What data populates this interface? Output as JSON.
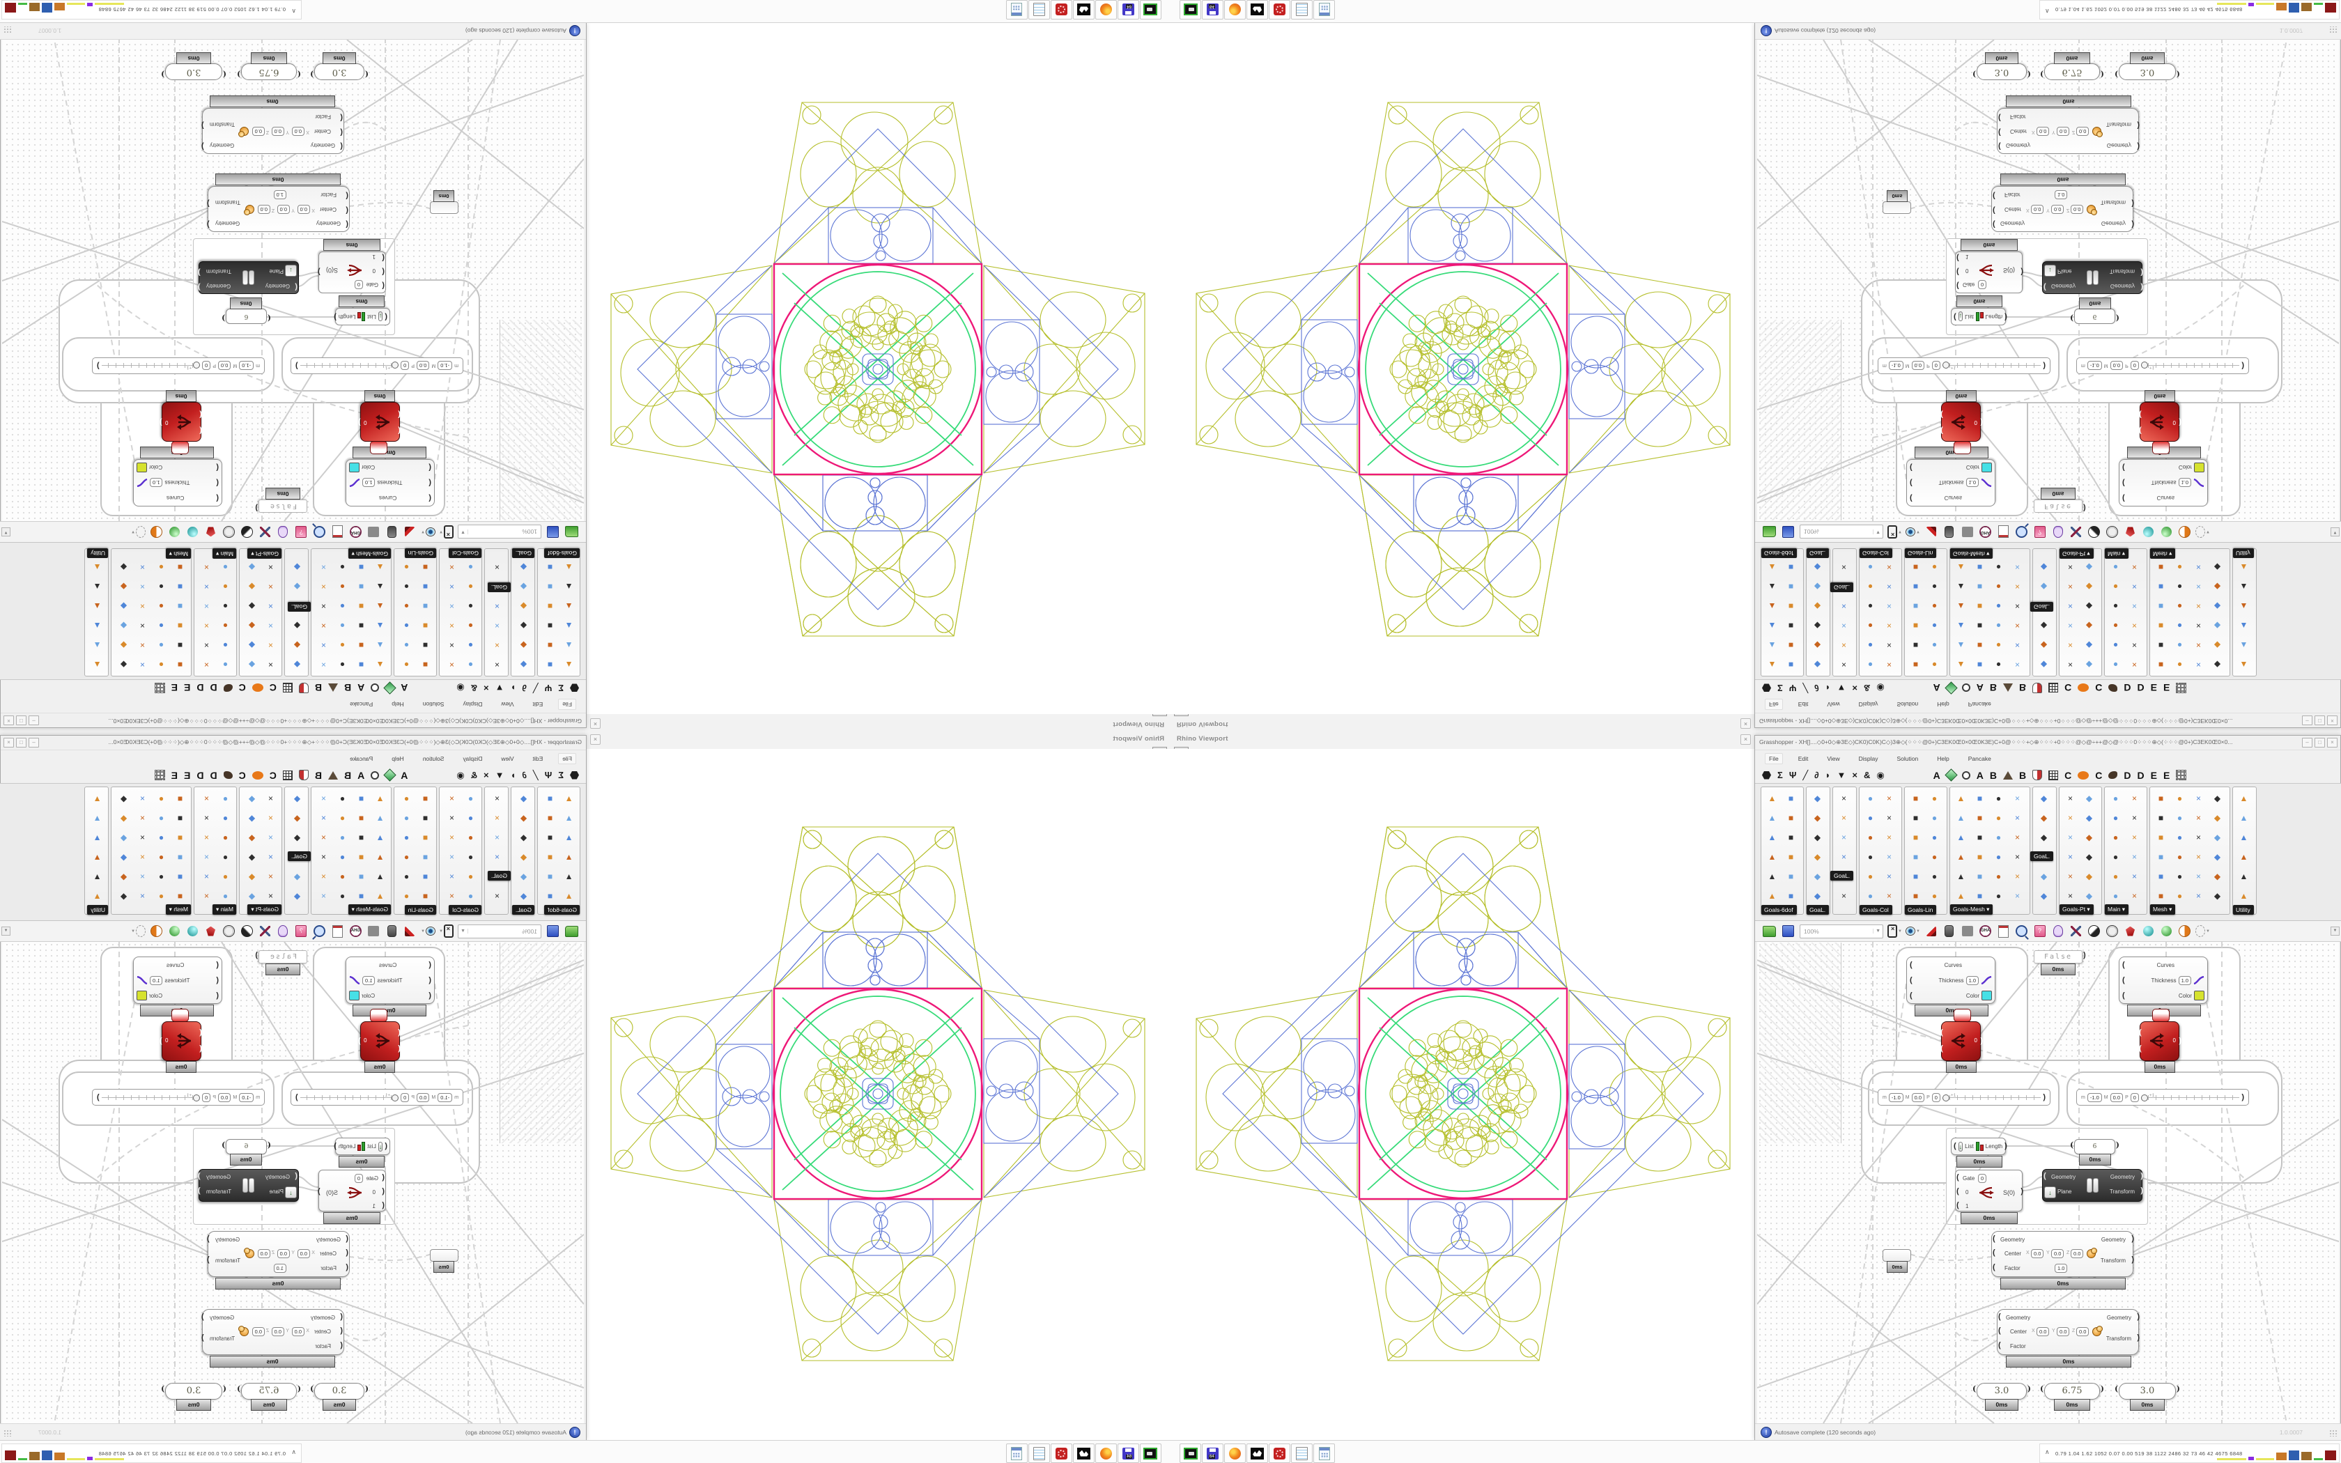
{
  "colors": {
    "pattern_olive": "#b5bf2b",
    "pattern_blue": "#5b74d4",
    "pattern_magenta": "#ee1878",
    "pattern_green": "#37db79",
    "preview_left_swatch": "#46e0e6",
    "preview_right_swatch": "#d6e22e",
    "error_red": "#c21f1f"
  },
  "rhino": {
    "title": "Rhino Viewport",
    "close": "×",
    "viewport_menu": "▼"
  },
  "gh": {
    "title": "Grasshopper - XH[]....◇0+0◇⊕3E◇)CK0)C0K)C◇)3⊕◇(⁘⁘⁘@0+)C3EK0Œ0×0Œ0K3E)C+0@⁘⁘⁘+◇⊕⁘⁘⁘+0⁘⁘⁘@◇@÷++@◇@⁘⁘⁘0⁘⁘⁘⊕◇(⁘⁘⁘@0+)C3EK0Œ0×0...",
    "buttons": {
      "minimize": "–",
      "maximize": "□",
      "close": "×"
    },
    "menu": [
      "File",
      "Edit",
      "View",
      "Display",
      "Solution",
      "Help",
      "Pancake"
    ],
    "tabs": [
      {
        "type": "shape",
        "name": "params-hexagon-icon",
        "cls": "sh-hex"
      },
      {
        "type": "glyph",
        "g": "Σ",
        "name": "maths-tab-icon"
      },
      {
        "type": "glyph",
        "g": "Ψ",
        "name": "sets-tab-icon"
      },
      {
        "type": "glyph",
        "g": "╱",
        "name": "vector-tab-icon"
      },
      {
        "type": "glyph",
        "g": "∂",
        "name": "curve-tab-icon"
      },
      {
        "type": "glyph",
        "g": "◗",
        "name": "surface-tab-icon"
      },
      {
        "type": "glyph",
        "g": "▼",
        "name": "mesh-tab-icon"
      },
      {
        "type": "glyph",
        "g": "×",
        "name": "intersect-tab-icon"
      },
      {
        "type": "glyph",
        "g": "&",
        "name": "transform-tab-icon"
      },
      {
        "type": "glyph",
        "g": "◉",
        "name": "display-tab-icon"
      },
      {
        "type": "space"
      },
      {
        "type": "letter",
        "g": "A"
      },
      {
        "type": "shape",
        "name": "gem-icon",
        "cls": "sh-gem"
      },
      {
        "type": "shape",
        "name": "paw-icon",
        "cls": "sh-paw"
      },
      {
        "type": "letter",
        "g": "A"
      },
      {
        "type": "letter",
        "g": "B"
      },
      {
        "type": "shape",
        "name": "mountain-icon",
        "cls": "sh-mtn"
      },
      {
        "type": "letter",
        "g": "B"
      },
      {
        "type": "shape",
        "name": "shield-icon",
        "cls": "sh-shield"
      },
      {
        "type": "shape",
        "name": "waffle-grid-icon",
        "cls": "sh-waffle"
      },
      {
        "type": "letter",
        "g": "C"
      },
      {
        "type": "shape",
        "name": "orange-oval-icon",
        "cls": "sh-oval"
      },
      {
        "type": "letter",
        "g": "C"
      },
      {
        "type": "shape",
        "name": "bird-icon",
        "cls": "sh-bird"
      },
      {
        "type": "letter",
        "g": "D"
      },
      {
        "type": "letter",
        "g": "D"
      },
      {
        "type": "letter",
        "g": "E"
      },
      {
        "type": "letter",
        "g": "E"
      },
      {
        "type": "shape",
        "name": "checker-icon",
        "cls": "sh-checker"
      }
    ],
    "palette": {
      "rows": 6,
      "groups": [
        {
          "label": "Goals-6dof",
          "cols": 2,
          "arrow": false
        },
        {
          "label": "GoaL.",
          "cols": 1,
          "arrow": false
        },
        {
          "label": "",
          "cols": 1,
          "arrow": false,
          "tooltip": "GoaL.",
          "tooltip_row": 4
        },
        {
          "label": "Goals-Col",
          "cols": 2,
          "arrow": false
        },
        {
          "label": "Goals-Lin",
          "cols": 2,
          "arrow": false
        },
        {
          "label": "Goals-Mesh",
          "cols": 4,
          "arrow": true
        },
        {
          "label": "",
          "cols": 1,
          "arrow": false,
          "tooltip": "GoaL.",
          "tooltip_row": 3
        },
        {
          "label": "Goals-Pt",
          "cols": 2,
          "arrow": true
        },
        {
          "label": "Main",
          "cols": 2,
          "arrow": true
        },
        {
          "label": "Mesh",
          "cols": 4,
          "arrow": true
        },
        {
          "label": "Utility",
          "cols": 1,
          "arrow": false
        }
      ],
      "icon_glyphs": [
        "▲",
        "●",
        "◆",
        "■",
        "×"
      ],
      "icon_colors": [
        "#d98a2b",
        "#4f86d8",
        "#2f2f2f",
        "#6aa3e0",
        "#c8641e"
      ]
    },
    "toolbar": {
      "zoom_value": "100%",
      "icons": [
        {
          "name": "zoom-extents-button",
          "cls": "tb-extents",
          "drop": true
        },
        {
          "name": "preview-eye-button",
          "cls": "tb-eye",
          "drop": true
        },
        {
          "name": "sketch-pen-button",
          "cls": "tb-pen",
          "drop": false
        },
        {
          "name": "bake-button",
          "cls": "tb-door",
          "drop": false
        },
        {
          "name": "annotate-button",
          "cls": "tb-at",
          "drop": false
        },
        {
          "name": "gha-loader-button",
          "cls": "tb-gha",
          "drop": false,
          "label": "GHA"
        },
        {
          "name": "notes-button",
          "cls": "tb-doc",
          "drop": false
        },
        {
          "name": "find-button",
          "cls": "tb-find",
          "drop": false
        },
        {
          "name": "help-button",
          "cls": "tb-help",
          "drop": false,
          "label": "?"
        },
        {
          "name": "hint-bulb-button",
          "cls": "tb-bulb",
          "drop": false
        },
        {
          "name": "wire-display-button",
          "cls": "tb-wires",
          "drop": false
        },
        {
          "name": "preview-shaded-button",
          "cls": "tb-sph1",
          "drop": false
        },
        {
          "name": "preview-wireframe-button",
          "cls": "tb-sph2",
          "drop": false
        },
        {
          "name": "preview-gem-button",
          "cls": "tb-gem",
          "drop": false
        },
        {
          "name": "material-teal-button",
          "cls": "tb-ball-teal",
          "drop": false
        },
        {
          "name": "material-green-button",
          "cls": "tb-ball-green",
          "drop": false
        },
        {
          "name": "material-orange-button",
          "cls": "tb-ball-orange",
          "drop": false
        },
        {
          "name": "selection-region-button",
          "cls": "tb-sel",
          "drop": true
        }
      ]
    },
    "status": {
      "autosave": "Autosave complete (120 seconds ago)",
      "version": "1.0.0007",
      "icon": "!"
    }
  },
  "canvas": {
    "zero_ms": "0ms",
    "false_toggle": "False",
    "preview": {
      "curves": "Curves",
      "thickness": "Thickness",
      "thickness_value": "1.0",
      "color": "Color"
    },
    "red_value": "0",
    "list_length": {
      "list": "List",
      "length": "Length"
    },
    "panel_value": "6",
    "gate": {
      "label": "Gate",
      "value": "0",
      "in0": "0",
      "in1": "1",
      "out": "S(0)"
    },
    "mirror": {
      "in1": "Geometry",
      "in2": "Plane",
      "out1": "Geometry",
      "out2": "Transform"
    },
    "scale": {
      "geometry": "Geometry",
      "center": "Center",
      "x": "X",
      "y": "Y",
      "z": "Z",
      "zero": "0.0",
      "factor": "Factor",
      "factor_value": "1.0",
      "out_geometry": "Geometry",
      "out_transform": "Transform"
    },
    "mini_slider": {
      "min_label": "m",
      "min_value": "-1.0",
      "max_label": "M",
      "max_value": "0.0",
      "p_label": "P",
      "p_value": "0",
      "tick": "+1"
    },
    "sliders": [
      "3.0",
      "6.75",
      "3.0"
    ]
  },
  "taskbar": {
    "apps": [
      {
        "name": "screenshot-tool-icon",
        "cls": "ic-shot"
      },
      {
        "name": "floppy-64-icon",
        "cls": "ic-flop"
      },
      {
        "name": "firefox-icon",
        "cls": "ic-fox"
      },
      {
        "name": "rhinoceros-icon",
        "cls": "ic-rhino"
      },
      {
        "name": "red-badge-icon",
        "cls": "ic-red"
      },
      {
        "name": "notepad-icon",
        "cls": "ic-pad"
      },
      {
        "name": "calculator-icon",
        "cls": "ic-calc"
      }
    ],
    "tray": {
      "expand": "∧",
      "stats": "0.79 1.04 1.62 1052 0.07 0.00 519  38  1122 2486  32  73  46  42  4675 6848",
      "bars": [
        {
          "color": "#e6e65a",
          "w": 42,
          "h": 3
        },
        {
          "color": "#8a2be2",
          "w": 8,
          "h": 5
        },
        {
          "color": "#e6e65a",
          "w": 26,
          "h": 3
        },
        {
          "color": "#c87828",
          "w": 15,
          "h": 11
        },
        {
          "color": "#2f5fb0",
          "w": 15,
          "h": 14
        },
        {
          "color": "#9a6a2a",
          "w": 15,
          "h": 12
        },
        {
          "color": "#44bb44",
          "w": 13,
          "h": 3
        },
        {
          "color": "#8b1818",
          "w": 16,
          "h": 14
        }
      ]
    }
  }
}
